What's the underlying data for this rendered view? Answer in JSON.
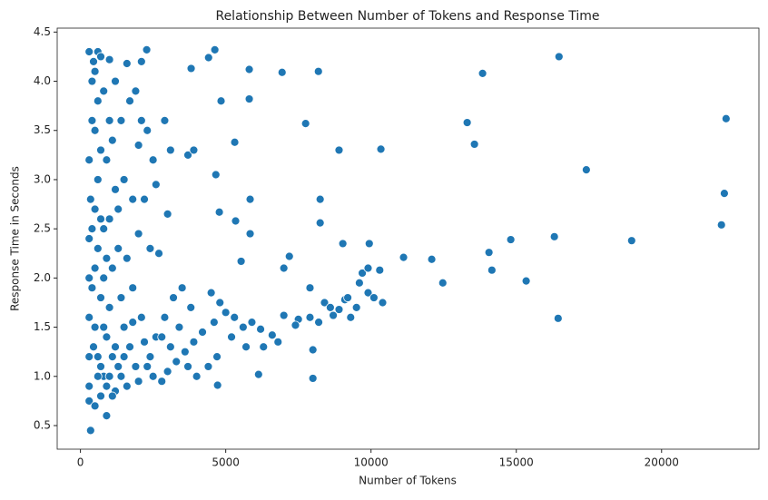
{
  "chart_data": {
    "type": "scatter",
    "title": "Relationship Between Number of Tokens and Response Time",
    "x_label": "Number of Tokens",
    "y_label": "Response Time in Seconds",
    "color": "#1f77b4",
    "xlim": [
      -800,
      23350
    ],
    "ylim": [
      0.26,
      4.54
    ],
    "xticks": [
      0,
      5000,
      10000,
      15000,
      20000
    ],
    "yticks": [
      0.5,
      {
        "value": 1,
        "label": "1.0"
      },
      1.5,
      {
        "value": 2,
        "label": "2.0"
      },
      2.5,
      {
        "value": 3,
        "label": "3.0"
      },
      3.5,
      {
        "value": 4,
        "label": "4.0"
      },
      4.5
    ],
    "grid": false,
    "x": [
      22220,
      16470,
      13840,
      13310,
      13560,
      17410,
      22160,
      22060,
      16310,
      14810,
      18970,
      14060,
      14160,
      15340,
      12470,
      12090,
      11120,
      16440,
      8190,
      6940,
      7750,
      10340,
      8900,
      8250,
      8250,
      7190,
      7000,
      9030,
      9940,
      8000,
      8000,
      6130,
      4720,
      4625,
      4410,
      2280,
      5810,
      3810,
      5810,
      4840,
      5310,
      4660,
      4780,
      5340,
      5840,
      5840,
      5530,
      9900,
      9500,
      10100,
      10400,
      9300,
      8700,
      8200,
      7900,
      7500,
      7000,
      6600,
      6200,
      5900,
      5600,
      5300,
      5000,
      4800,
      4500,
      8400,
      8600,
      9100,
      7400,
      6800,
      7900,
      9700,
      9900,
      10300,
      9600,
      9200,
      8900,
      6300,
      5700,
      5200,
      4700,
      4400,
      4600,
      4200,
      3900,
      3600,
      3300,
      3000,
      2800,
      2500,
      2300,
      3400,
      3800,
      3200,
      2900,
      3500,
      2700,
      2400,
      3000,
      2600,
      2900,
      3100,
      3700,
      3900,
      2500,
      2300,
      2000,
      1700,
      1900,
      2100,
      1600,
      2100,
      1200,
      1000,
      1400,
      1500,
      1800,
      2200,
      2000,
      1600,
      1300,
      1800,
      2100,
      1500,
      1700,
      1900,
      1400,
      1200,
      1600,
      2000,
      1100,
      900,
      1000,
      800,
      700,
      600,
      500,
      400,
      300,
      600,
      700,
      500,
      400,
      300,
      350,
      300,
      300,
      300,
      300,
      300,
      300,
      350,
      900,
      500,
      700,
      800,
      600,
      500,
      700,
      900,
      800,
      600,
      500,
      400,
      450,
      600,
      700,
      1000,
      1100,
      900,
      1200,
      1300,
      1500,
      800,
      700,
      900,
      1000,
      800,
      1100,
      500,
      600,
      450,
      1300,
      1200,
      1000,
      400,
      1100,
      1400,
      2200,
      2600,
      2400,
      1800,
      3700,
      4000,
      3100,
      2800
    ],
    "values": [
      3.62,
      4.25,
      4.08,
      3.58,
      3.36,
      3.1,
      2.86,
      2.54,
      2.42,
      2.39,
      2.38,
      2.26,
      2.08,
      1.97,
      1.95,
      2.19,
      2.21,
      1.59,
      4.1,
      4.09,
      3.57,
      3.31,
      3.3,
      2.8,
      2.56,
      2.22,
      2.1,
      2.35,
      2.35,
      1.27,
      0.98,
      1.02,
      0.91,
      4.32,
      4.24,
      4.32,
      4.12,
      4.13,
      3.82,
      3.8,
      3.38,
      3.05,
      2.67,
      2.58,
      2.8,
      2.45,
      2.17,
      1.85,
      1.7,
      1.8,
      1.75,
      1.6,
      1.62,
      1.55,
      1.6,
      1.58,
      1.62,
      1.42,
      1.48,
      1.55,
      1.5,
      1.6,
      1.65,
      1.75,
      1.85,
      1.75,
      1.7,
      1.78,
      1.52,
      1.35,
      1.9,
      2.05,
      2.1,
      2.08,
      1.95,
      1.8,
      1.68,
      1.3,
      1.3,
      1.4,
      1.2,
      1.1,
      1.55,
      1.45,
      1.35,
      1.25,
      1.15,
      1.05,
      0.95,
      1.0,
      1.1,
      1.5,
      1.7,
      1.8,
      1.6,
      1.9,
      2.25,
      2.3,
      2.65,
      2.95,
      3.6,
      3.3,
      3.25,
      3.3,
      3.2,
      3.5,
      3.35,
      3.8,
      3.9,
      3.6,
      4.18,
      4.2,
      4.0,
      4.22,
      3.6,
      3.0,
      2.8,
      2.8,
      2.45,
      2.2,
      2.3,
      1.9,
      1.6,
      1.5,
      1.3,
      1.1,
      1.0,
      0.85,
      0.9,
      0.95,
      1.2,
      1.4,
      1.7,
      2.0,
      2.6,
      3.0,
      3.5,
      4.0,
      4.3,
      4.3,
      4.25,
      4.1,
      3.6,
      3.2,
      2.8,
      2.4,
      2.0,
      1.6,
      1.2,
      0.9,
      0.75,
      0.45,
      0.6,
      0.7,
      0.8,
      1.0,
      1.2,
      1.5,
      1.8,
      2.2,
      2.5,
      2.3,
      2.1,
      1.9,
      1.3,
      1.0,
      1.1,
      1.0,
      0.8,
      0.9,
      1.3,
      1.1,
      1.2,
      1.5,
      3.3,
      3.2,
      3.6,
      3.9,
      3.4,
      2.7,
      3.8,
      4.2,
      2.7,
      2.9,
      2.6,
      2.5,
      2.1,
      1.8,
      1.35,
      1.4,
      1.2,
      1.55,
      1.1,
      1.0,
      1.3,
      1.4
    ]
  }
}
